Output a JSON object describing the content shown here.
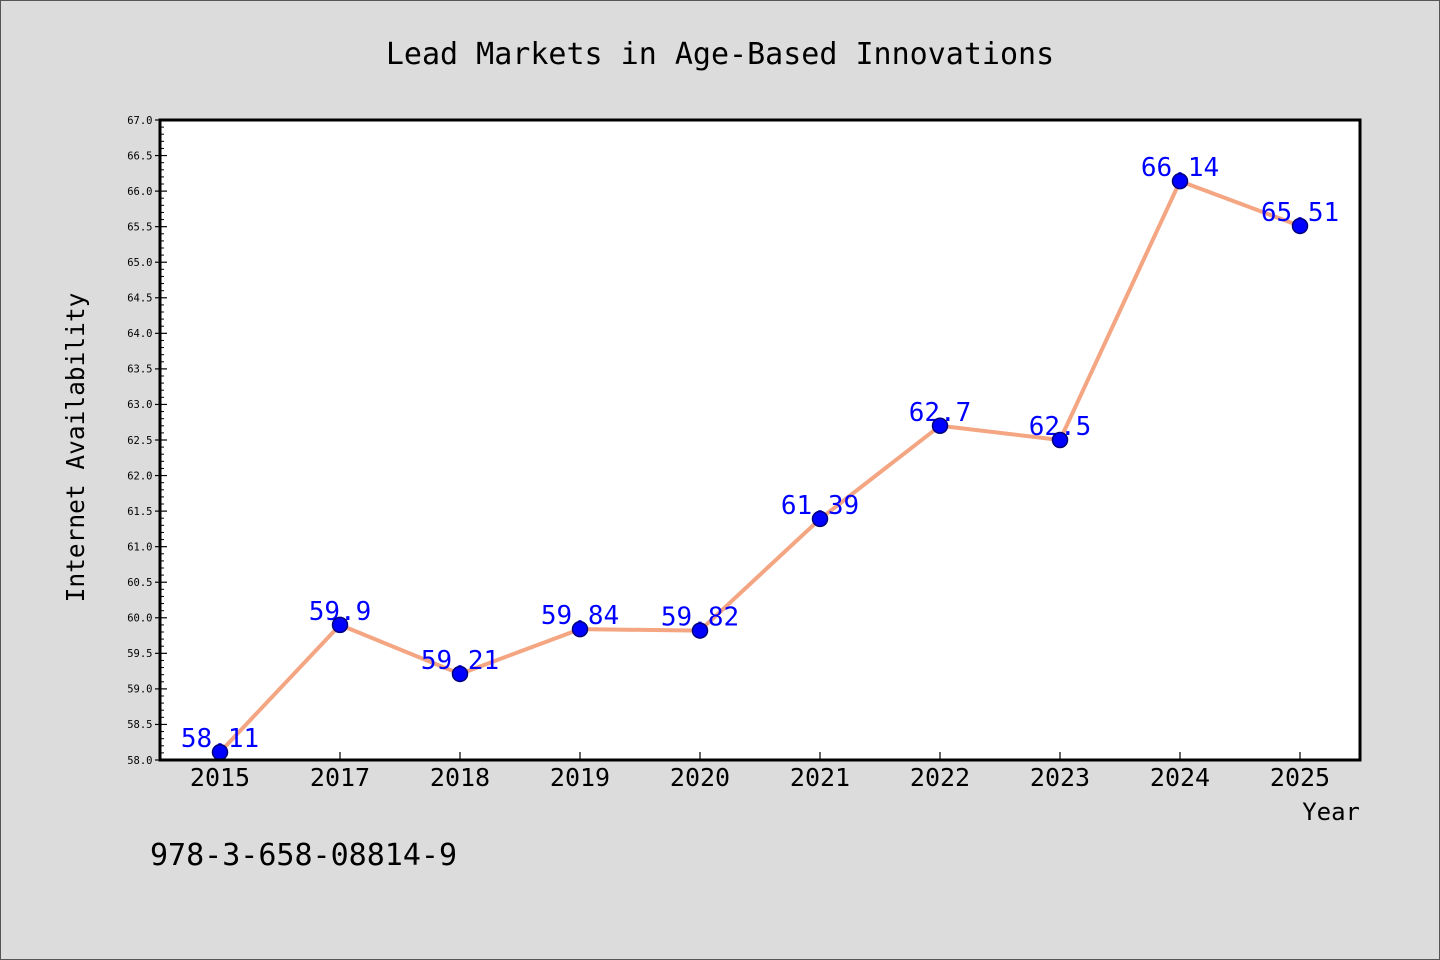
{
  "chart_data": {
    "type": "line",
    "title": "Lead Markets in Age-Based Innovations",
    "xlabel": "Year",
    "ylabel": "Internet Availability",
    "categories": [
      "2015",
      "2017",
      "2018",
      "2019",
      "2020",
      "2021",
      "2022",
      "2023",
      "2024",
      "2025"
    ],
    "series": [
      {
        "values": [
          58.11,
          59.9,
          59.21,
          59.84,
          59.82,
          61.39,
          62.7,
          62.5,
          66.14,
          65.51
        ]
      }
    ],
    "ylim": [
      58.0,
      67.0
    ],
    "ytick_labels": [
      "58.0",
      "58.5",
      "59.0",
      "59.5",
      "60.0",
      "60.5",
      "61.0",
      "61.5",
      "62.0",
      "62.5",
      "63.0",
      "63.5",
      "64.0",
      "64.5",
      "65.0",
      "65.5",
      "66.0",
      "66.5",
      "67.0"
    ],
    "data_labels_shown": true,
    "grid": false,
    "colors": {
      "background": "#dcdcdc",
      "plot_background": "#ffffff",
      "axis": "#000000",
      "line": "#f4a582",
      "marker_fill": "#0000ff",
      "marker_edge": "#00007a",
      "data_label": "#0000ff"
    }
  },
  "footnote": "978-3-658-08814-9"
}
